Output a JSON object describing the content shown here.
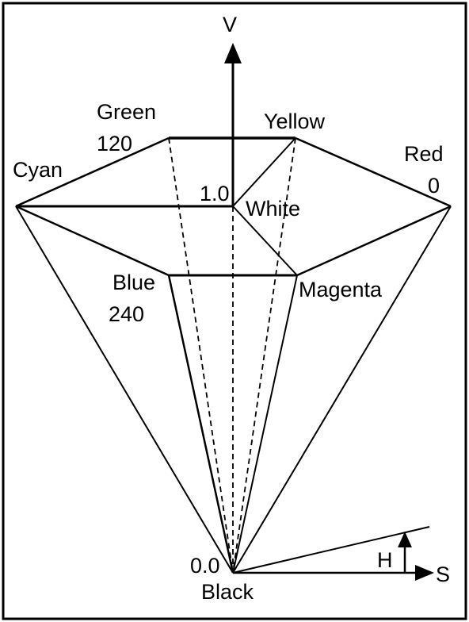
{
  "axis": {
    "v": "V",
    "s": "S",
    "h": "H"
  },
  "vertices": {
    "green": {
      "name": "Green",
      "value": "120"
    },
    "yellow": {
      "name": "Yellow"
    },
    "red": {
      "name": "Red",
      "value": "0"
    },
    "cyan": {
      "name": "Cyan"
    },
    "white": {
      "name": "White",
      "value": "1.0"
    },
    "blue": {
      "name": "Blue",
      "value": "240"
    },
    "magenta": {
      "name": "Magenta"
    },
    "black": {
      "name": "Black",
      "value": "0.0"
    }
  },
  "colors": {
    "stroke": "#000000",
    "background": "#ffffff"
  }
}
